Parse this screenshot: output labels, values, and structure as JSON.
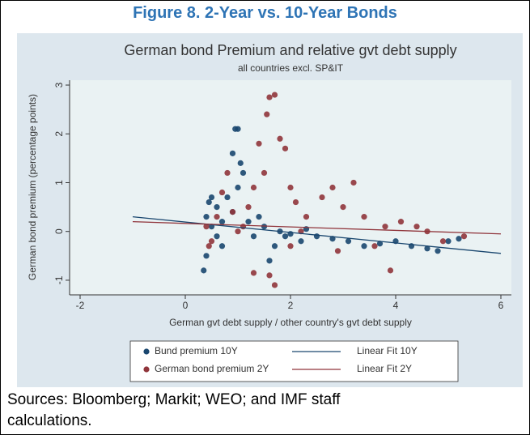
{
  "header": {
    "title": "Figure 8. 2-Year vs. 10-Year Bonds"
  },
  "source": "Sources: Bloomberg; Markit; WEO; and IMF staff calculations.",
  "chart_data": {
    "type": "scatter",
    "title": "German bond Premium and relative gvt debt supply",
    "subtitle": "all countries excl. SP&IT",
    "x_label": "German gvt debt supply / other country's gvt debt supply",
    "y_label": "German bond premium (percentage points)",
    "xlim": [
      -2.2,
      6.2
    ],
    "ylim": [
      -1.3,
      3.1
    ],
    "xticks": [
      -2,
      0,
      2,
      4,
      6
    ],
    "yticks": [
      -1,
      0,
      1,
      2,
      3
    ],
    "legend": "bottom",
    "series": [
      {
        "name": "Bund premium 10Y",
        "type": "scatter",
        "color": "#1a476f",
        "x": [
          0.35,
          0.4,
          0.4,
          0.45,
          0.5,
          0.6,
          0.7,
          0.8,
          0.9,
          0.95,
          1.0,
          1.05,
          1.1,
          1.0,
          0.9,
          1.2,
          1.3,
          1.5,
          1.6,
          1.7,
          1.9,
          2.0,
          2.2,
          2.5,
          2.8,
          3.1,
          3.4,
          3.7,
          4.0,
          4.3,
          4.6,
          4.8,
          5.0,
          5.2,
          0.6,
          0.5,
          1.4,
          1.8,
          2.3,
          0.7
        ],
        "values": [
          -0.8,
          -0.5,
          0.3,
          0.6,
          0.7,
          0.5,
          0.2,
          0.7,
          1.6,
          2.1,
          2.1,
          1.4,
          1.2,
          0.9,
          0.4,
          0.2,
          -0.1,
          0.1,
          -0.6,
          -0.3,
          -0.1,
          -0.05,
          -0.2,
          -0.1,
          -0.15,
          -0.2,
          -0.3,
          -0.25,
          -0.2,
          -0.3,
          -0.35,
          -0.4,
          -0.2,
          -0.15,
          -0.1,
          0.1,
          0.3,
          0.0,
          0.05,
          -0.3
        ]
      },
      {
        "name": "German bond premium 2Y",
        "type": "scatter",
        "color": "#90353b",
        "x": [
          0.4,
          0.5,
          0.6,
          0.7,
          0.8,
          0.9,
          1.0,
          1.2,
          1.3,
          1.4,
          1.5,
          1.55,
          1.6,
          1.7,
          1.8,
          1.9,
          2.0,
          2.1,
          1.6,
          1.3,
          1.7,
          2.0,
          2.3,
          2.6,
          2.8,
          3.0,
          3.2,
          3.4,
          3.6,
          3.9,
          4.1,
          4.4,
          4.6,
          4.9,
          5.3,
          1.1,
          2.2,
          2.9,
          3.8,
          0.45
        ],
        "values": [
          0.1,
          -0.2,
          0.3,
          0.8,
          1.2,
          0.4,
          0.0,
          0.5,
          0.9,
          1.8,
          1.2,
          2.4,
          2.75,
          2.8,
          1.9,
          1.7,
          0.9,
          0.6,
          -0.9,
          -0.85,
          -1.1,
          -0.3,
          0.3,
          0.7,
          0.9,
          0.5,
          1.0,
          0.3,
          -0.3,
          -0.8,
          0.2,
          0.1,
          0.0,
          -0.2,
          -0.1,
          0.1,
          0.0,
          -0.4,
          0.1,
          -0.3
        ]
      },
      {
        "name": "Linear Fit 10Y",
        "type": "line",
        "color": "#1a476f",
        "x": [
          -1,
          6
        ],
        "values": [
          0.3,
          -0.45
        ]
      },
      {
        "name": "Linear Fit 2Y",
        "type": "line",
        "color": "#90353b",
        "x": [
          -1,
          6
        ],
        "values": [
          0.2,
          -0.05
        ]
      }
    ]
  }
}
